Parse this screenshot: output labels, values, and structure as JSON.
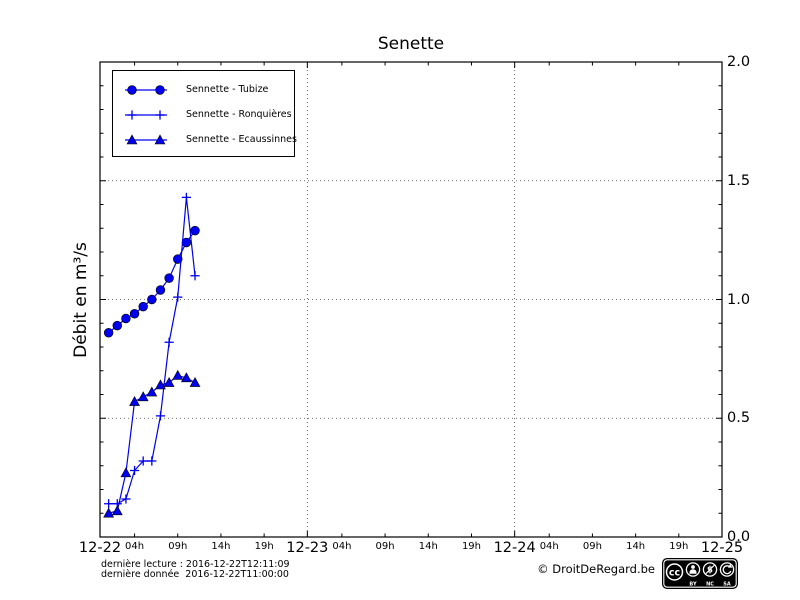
{
  "title": "Senette",
  "ylabel": "Débit en m³/s",
  "chart_data": {
    "type": "line",
    "x_unit": "hours after 2016-12-22 00:00",
    "xlim": [
      0,
      72
    ],
    "ylim": [
      0.0,
      2.0
    ],
    "grid": {
      "h_values": [
        0.5,
        1.0,
        1.5
      ],
      "v_hours": [
        24,
        48
      ]
    },
    "xticks_major": {
      "positions": [
        0,
        24,
        48,
        72
      ],
      "labels": [
        "12-22",
        "12-23",
        "12-24",
        "12-25"
      ]
    },
    "xticks_minor": {
      "day_offsets": [
        0,
        24,
        48
      ],
      "hour_positions": [
        4,
        9,
        14,
        19
      ],
      "labels": [
        "04h",
        "09h",
        "14h",
        "19h"
      ]
    },
    "yticks_major": {
      "positions": [
        0.0,
        0.5,
        1.0,
        1.5,
        2.0
      ],
      "labels": [
        "0.0",
        "0.5",
        "1.0",
        "1.5",
        "2.0"
      ]
    },
    "ytick_minor_step": 0.1,
    "legend_position": "upper left",
    "series": [
      {
        "name": "Sennette - Tubize",
        "marker": "circle",
        "color": "#0000ee",
        "x": [
          1,
          2,
          3,
          4,
          5,
          6,
          7,
          8,
          9,
          10,
          11
        ],
        "y": [
          0.86,
          0.89,
          0.92,
          0.94,
          0.97,
          1.0,
          1.04,
          1.09,
          1.17,
          1.24,
          1.29
        ]
      },
      {
        "name": "Sennette - Ronquières",
        "marker": "plus",
        "color": "#0000ee",
        "x": [
          1,
          2,
          3,
          4,
          5,
          6,
          7,
          8,
          9,
          10,
          11
        ],
        "y": [
          0.14,
          0.14,
          0.16,
          0.28,
          0.32,
          0.32,
          0.51,
          0.82,
          1.01,
          1.43,
          1.1
        ]
      },
      {
        "name": "Sennette - Ecaussinnes",
        "marker": "triangle",
        "color": "#0000ee",
        "x": [
          1,
          2,
          3,
          4,
          5,
          6,
          7,
          8,
          9,
          10,
          11
        ],
        "y": [
          0.1,
          0.11,
          0.27,
          0.57,
          0.59,
          0.61,
          0.64,
          0.65,
          0.68,
          0.67,
          0.65
        ]
      }
    ]
  },
  "footer": {
    "line1": "dernière lecture : 2016-12-22T12:11:09",
    "line2": "dernière donnée  2016-12-22T11:00:00",
    "copyright": "© DroitDeRegard.be"
  },
  "cc_badge": {
    "cc_text": "cc",
    "labels": [
      "BY",
      "NC",
      "SA"
    ]
  }
}
